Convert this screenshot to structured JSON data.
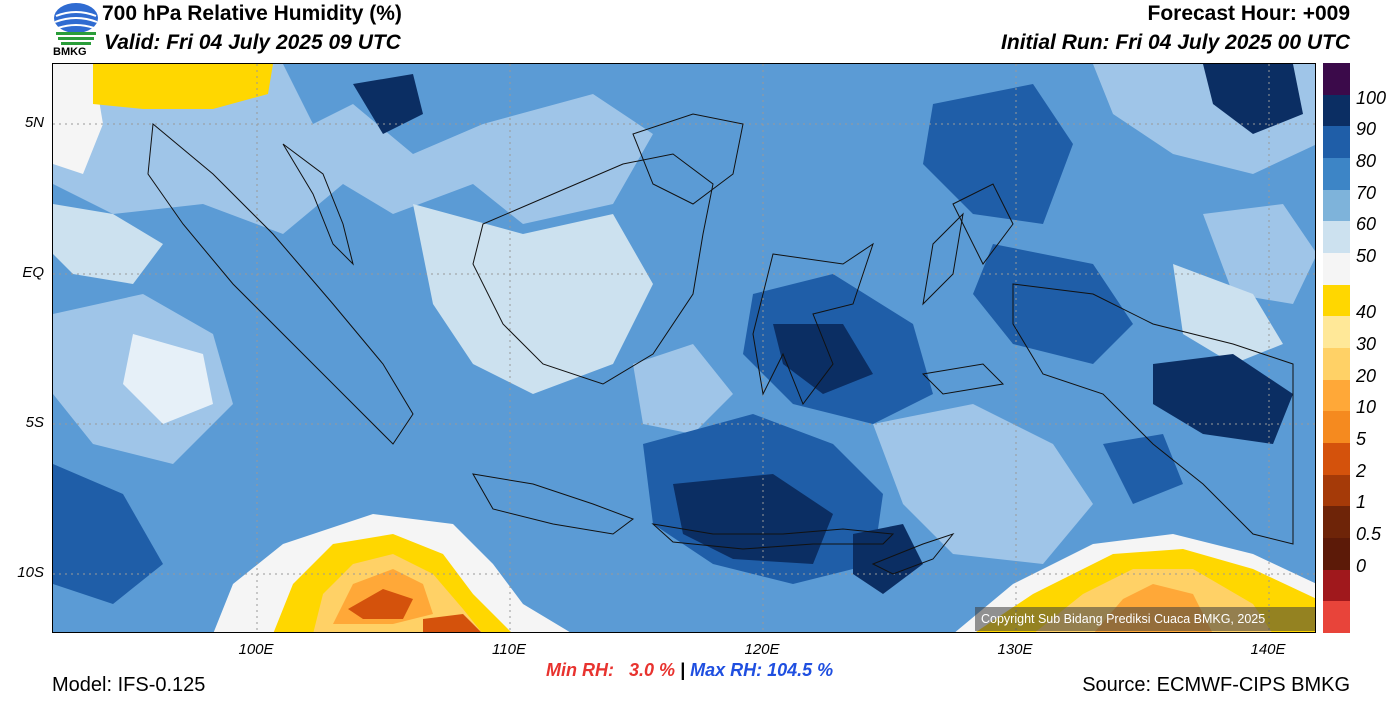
{
  "header": {
    "title": "700 hPa Relative Humidity (%)",
    "valid": "Valid: Fri 04 July 2025 09 UTC",
    "forecast_hour": "Forecast Hour: +009",
    "initial_run": "Initial Run: Fri 04 July 2025 00 UTC"
  },
  "logo": {
    "text": "BMKG",
    "icon": "bmkg-globe-logo"
  },
  "map": {
    "lat_labels": [
      "5N",
      "EQ",
      "5S",
      "10S"
    ],
    "lon_labels": [
      "100E",
      "110E",
      "120E",
      "130E",
      "140E"
    ],
    "copyright": "Copyright Sub Bidang Prediksi Cuaca BMKG, 2025"
  },
  "colorbar": {
    "labels": [
      "100",
      "90",
      "80",
      "70",
      "60",
      "50",
      "40",
      "30",
      "20",
      "10",
      "5",
      "2",
      "1",
      "0.5",
      "0"
    ],
    "colors": [
      "#3b0a4a",
      "#0b2e63",
      "#1f5ea8",
      "#3d85c6",
      "#7eb3da",
      "#cce1ef",
      "#f5f5f5",
      "#ffd700",
      "#ffe898",
      "#ffd166",
      "#ffa838",
      "#f58a1f",
      "#d4520c",
      "#a53a08",
      "#6e2408",
      "#5c1a08",
      "#a0181c",
      "#e8443a"
    ]
  },
  "stats": {
    "min_label": "Min RH:   3.0 %",
    "separator": "|",
    "max_label": "Max RH: 104.5 %"
  },
  "footer": {
    "model": "Model: IFS-0.125",
    "source": "Source: ECMWF-CIPS BMKG"
  }
}
